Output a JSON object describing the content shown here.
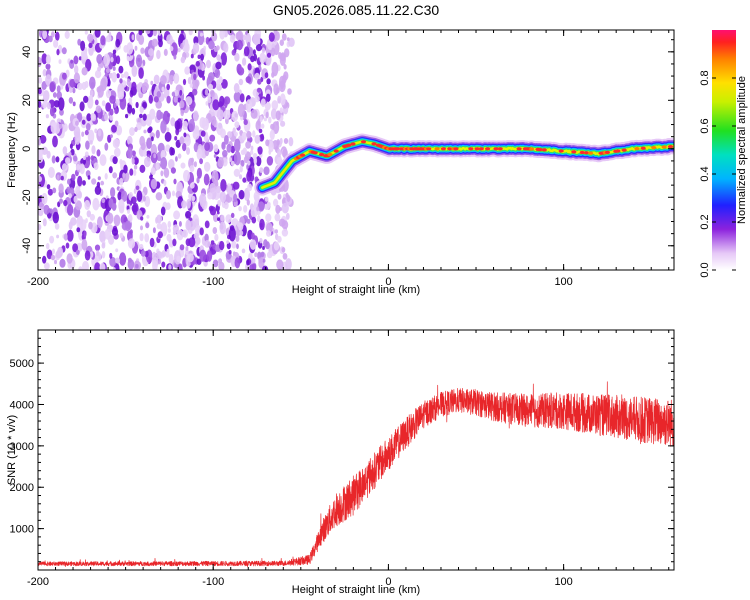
{
  "title": "GN05.2026.085.11.22.C30",
  "chart_data": [
    {
      "type": "heatmap",
      "name": "spectrogram",
      "xlabel": "Height of straight line (km)",
      "ylabel": "Frequency (Hz)",
      "xlim": [
        -200,
        163
      ],
      "ylim": [
        -50,
        49
      ],
      "xticks": [
        -200,
        -100,
        0,
        100
      ],
      "yticks": [
        -40,
        -20,
        0,
        20,
        40
      ],
      "colorbar": {
        "label": "Normalized spectral amplitude",
        "range": [
          0,
          1
        ],
        "ticks": [
          0.0,
          0.2,
          0.4,
          0.6,
          0.8
        ],
        "tick_labels": [
          "0.0",
          "0.2",
          "0.4",
          "0.6",
          "0.8"
        ]
      },
      "noise_region_x": [
        -200,
        -55
      ],
      "ridge": {
        "x": [
          -72,
          -65,
          -55,
          -45,
          -35,
          -25,
          -15,
          -8,
          0,
          20,
          50,
          80,
          100,
          120,
          140,
          163
        ],
        "freq": [
          -16,
          -14,
          -5,
          -1,
          -3,
          1,
          3,
          2,
          0,
          0,
          0,
          0,
          -1,
          -2,
          0,
          1
        ]
      }
    },
    {
      "type": "line",
      "name": "snr",
      "xlabel": "Height of straight line (km)",
      "ylabel": "SNR (10 * v/v)",
      "xlim": [
        -200,
        163
      ],
      "ylim": [
        0,
        5800
      ],
      "xticks": [
        -200,
        -100,
        0,
        100
      ],
      "yticks": [
        1000,
        2000,
        3000,
        4000,
        5000
      ],
      "color": "#e8262a",
      "envelope": {
        "x": [
          -200,
          -60,
          -45,
          -38,
          -30,
          -20,
          -10,
          0,
          10,
          20,
          30,
          40,
          50,
          60,
          80,
          100,
          120,
          140,
          163
        ],
        "mean": [
          150,
          160,
          250,
          900,
          1450,
          1800,
          2300,
          2800,
          3300,
          3750,
          4000,
          4100,
          4050,
          3950,
          3850,
          3850,
          3750,
          3650,
          3550
        ],
        "noise": [
          50,
          60,
          120,
          280,
          420,
          480,
          450,
          420,
          380,
          330,
          300,
          300,
          320,
          350,
          400,
          450,
          500,
          550,
          600
        ]
      }
    }
  ]
}
